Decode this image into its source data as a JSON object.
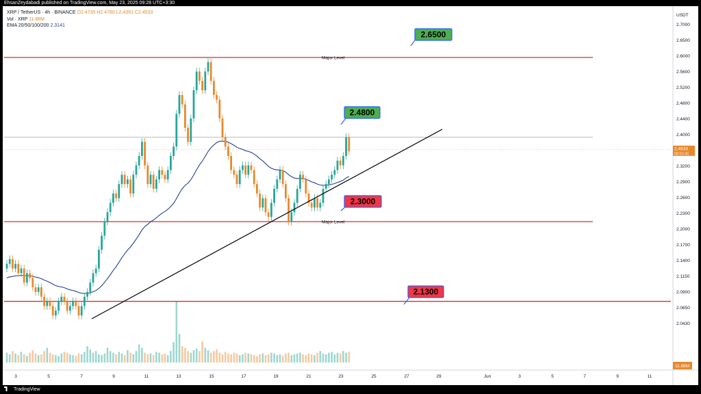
{
  "header": {
    "published": "EhsanZeydabadi published on TradingView.com, May 23, 2025 09:28 UTC+3:30"
  },
  "legend": {
    "symbol": "XRP / TetherUS · 4h · BINANCE",
    "ohlc": "O2.4735 H2.4780 L2.4391 C2.4533",
    "vol_label": "Vol · XRP",
    "vol_value": "11.88M",
    "ema_label": "EMA 20/50/100/200",
    "ema_value": "2.3141"
  },
  "footer": {
    "brand": "TradingView"
  },
  "colors": {
    "up": "#26a69a",
    "down": "#e8882c",
    "level_line": "#d32f2f",
    "ema": "#1f3f8f",
    "trendline": "#000000",
    "green_box": "#4caf50",
    "red_box": "#f23645"
  },
  "chart_data": {
    "type": "candlestick",
    "currency": "USDT",
    "ylim": [
      2.02,
      2.72
    ],
    "y_ticks": [
      "2.7000",
      "2.6500",
      "2.6000",
      "2.5600",
      "2.5200",
      "2.4800",
      "2.4400",
      "2.4000",
      "2.3600",
      "2.3200",
      "2.2900",
      "2.2600",
      "2.2300",
      "2.2000",
      "2.1700",
      "2.1400",
      "2.1150",
      "2.0900",
      "2.0650",
      "2.0430"
    ],
    "x_ticks": [
      "3",
      "5",
      "7",
      "9",
      "11",
      "13",
      "15",
      "17",
      "19",
      "21",
      "23",
      "25",
      "27",
      "29",
      "Jun",
      "3",
      "5",
      "7",
      "9",
      "11"
    ],
    "levels": [
      {
        "value": 2.65,
        "label": "2.6500",
        "line_label": "Major Level",
        "color": "green"
      },
      {
        "value": 2.3,
        "label": "2.3000",
        "line_label": "Major Level",
        "color": "red"
      },
      {
        "value": 2.13,
        "label": "2.1300",
        "line_label": "",
        "color": "red"
      }
    ],
    "target_label": {
      "value": 2.48,
      "label": "2.4800",
      "color": "green"
    },
    "price_marker": {
      "value": 2.4533,
      "label": "2.4533",
      "countdown": "02:01:41"
    },
    "volume_marker": "11.88M",
    "closes": [
      2.21,
      2.22,
      2.2,
      2.21,
      2.19,
      2.2,
      2.17,
      2.19,
      2.18,
      2.16,
      2.15,
      2.16,
      2.14,
      2.12,
      2.13,
      2.12,
      2.1,
      2.11,
      2.13,
      2.14,
      2.13,
      2.11,
      2.12,
      2.13,
      2.12,
      2.1,
      2.12,
      2.14,
      2.15,
      2.17,
      2.19,
      2.2,
      2.24,
      2.27,
      2.3,
      2.32,
      2.34,
      2.36,
      2.35,
      2.38,
      2.4,
      2.38,
      2.39,
      2.36,
      2.4,
      2.42,
      2.44,
      2.47,
      2.42,
      2.38,
      2.4,
      2.37,
      2.39,
      2.41,
      2.4,
      2.39,
      2.41,
      2.44,
      2.46,
      2.53,
      2.57,
      2.55,
      2.5,
      2.47,
      2.52,
      2.58,
      2.62,
      2.6,
      2.58,
      2.62,
      2.64,
      2.6,
      2.57,
      2.56,
      2.52,
      2.48,
      2.46,
      2.44,
      2.41,
      2.4,
      2.38,
      2.41,
      2.42,
      2.4,
      2.42,
      2.41,
      2.38,
      2.36,
      2.33,
      2.35,
      2.32,
      2.31,
      2.34,
      2.37,
      2.39,
      2.41,
      2.38,
      2.35,
      2.3,
      2.32,
      2.34,
      2.37,
      2.4,
      2.39,
      2.36,
      2.34,
      2.33,
      2.35,
      2.33,
      2.34,
      2.37,
      2.38,
      2.39,
      2.4,
      2.41,
      2.43,
      2.42,
      2.44,
      2.48,
      2.45
    ],
    "volumes": [
      12,
      10,
      14,
      11,
      9,
      13,
      10,
      8,
      12,
      15,
      11,
      9,
      10,
      14,
      18,
      12,
      10,
      9,
      8,
      11,
      13,
      12,
      10,
      9,
      8,
      11,
      10,
      13,
      20,
      16,
      12,
      14,
      10,
      9,
      11,
      18,
      14,
      12,
      10,
      13,
      11,
      9,
      15,
      12,
      10,
      14,
      22,
      18,
      12,
      10,
      11,
      9,
      13,
      12,
      10,
      11,
      9,
      14,
      25,
      75,
      35,
      20,
      18,
      14,
      12,
      15,
      17,
      14,
      26,
      18,
      15,
      12,
      14,
      16,
      12,
      10,
      13,
      11,
      10,
      12,
      11,
      9,
      10,
      12,
      11,
      10,
      9,
      8,
      10,
      11,
      9,
      10,
      12,
      11,
      9,
      10,
      8,
      11,
      12,
      9,
      10,
      11,
      12,
      10,
      9,
      11,
      10,
      9,
      12,
      14,
      11,
      10,
      12,
      13,
      10,
      12,
      11,
      14,
      12,
      13
    ]
  }
}
